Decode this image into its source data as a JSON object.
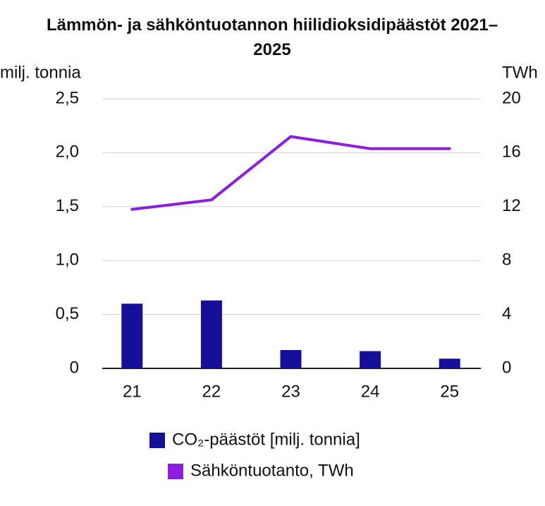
{
  "chart_data": {
    "type": "combo",
    "title": "Lämmön- ja sähköntuotannon hiilidioksidipäästöt 2021–2025",
    "y_label": "milj. tonnia",
    "y2_label": "TWh",
    "categories": [
      "21",
      "22",
      "23",
      "24",
      "25"
    ],
    "series": [
      {
        "name": "CO₂-päästöt [milj. tonnia]",
        "type": "bar",
        "color": "#15109a",
        "values": [
          0.6,
          0.63,
          0.17,
          0.16,
          0.09
        ]
      },
      {
        "name": "Sähköntuotanto, TWh",
        "type": "line",
        "axis": "y2",
        "color": "#8a1fe0",
        "values": [
          11.8,
          12.5,
          17.2,
          16.3,
          16.3
        ]
      }
    ],
    "ylim": [
      0,
      2.5
    ],
    "yticks": [
      0,
      {
        "value": 0.5,
        "label": "0,5"
      },
      {
        "value": 1,
        "label": "1,0"
      },
      {
        "value": 1.5,
        "label": "1,5"
      },
      {
        "value": 2,
        "label": "2,0"
      },
      {
        "value": 2.5,
        "label": "2,5"
      }
    ],
    "y2lim": [
      0,
      20
    ],
    "y2ticks": [
      0,
      4,
      8,
      12,
      16,
      20
    ],
    "grid": true
  }
}
